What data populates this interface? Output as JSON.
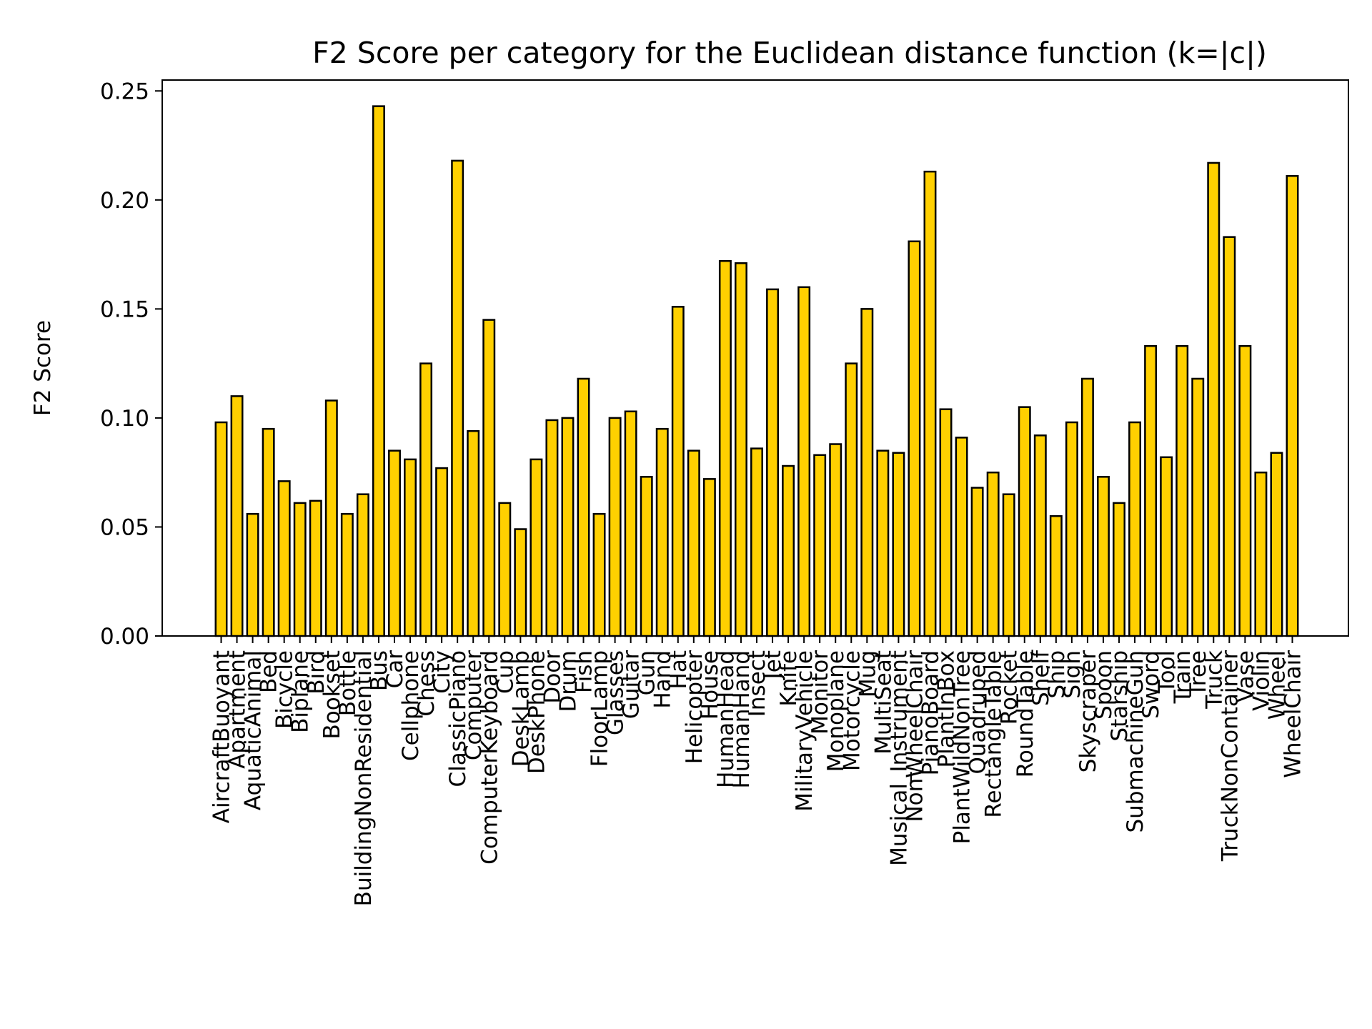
{
  "chart_data": {
    "type": "bar",
    "title": "F2 Score per category for the Euclidean distance function (k=|c|)",
    "xlabel": "",
    "ylabel": "F2 Score",
    "ylim": [
      0,
      0.255
    ],
    "yticks": [
      "0.00",
      "0.05",
      "0.10",
      "0.15",
      "0.20",
      "0.25"
    ],
    "grid": false,
    "legend": "none",
    "colors": {
      "bar_fill": "#FFD000",
      "bar_edge": "#000000",
      "axis": "#000000"
    },
    "categories": [
      "AircraftBuoyant",
      "Apartment",
      "AquaticAnimal",
      "Bed",
      "Bicycle",
      "Biplane",
      "Bird",
      "Bookset",
      "Bottle",
      "BuildingNonResidential",
      "Bus",
      "Car",
      "Cellphone",
      "Chess",
      "City",
      "ClassicPiano",
      "Computer",
      "ComputerKeyboard",
      "Cup",
      "DeskLamp",
      "DeskPhone",
      "Door",
      "Drum",
      "Fish",
      "FloorLamp",
      "Glasses",
      "Guitar",
      "Gun",
      "Hand",
      "Hat",
      "Helicopter",
      "House",
      "HumanHead",
      "HumanHand",
      "Insect",
      "Jet",
      "Knife",
      "MilitaryVehicle",
      "Monitor",
      "Monoplane",
      "Motorcycle",
      "Mug",
      "MultiSeat",
      "Musical_Instrument",
      "NonWheelChair",
      "PianoBoard",
      "PlantInBox",
      "PlantWildNonTree",
      "Quadruped",
      "RectangleTable",
      "Rocket",
      "RoundTable",
      "Shelf",
      "Ship",
      "Sign",
      "Skyscraper",
      "Spoon",
      "Starship",
      "SubmachineGun",
      "Sword",
      "Tool",
      "Train",
      "Tree",
      "Truck",
      "TruckNonContainer",
      "Vase",
      "Violin",
      "Wheel",
      "WheelChair"
    ],
    "values": [
      0.098,
      0.11,
      0.056,
      0.095,
      0.071,
      0.061,
      0.062,
      0.108,
      0.056,
      0.065,
      0.243,
      0.085,
      0.081,
      0.125,
      0.077,
      0.218,
      0.094,
      0.145,
      0.061,
      0.049,
      0.081,
      0.099,
      0.1,
      0.118,
      0.056,
      0.1,
      0.103,
      0.073,
      0.095,
      0.151,
      0.085,
      0.072,
      0.172,
      0.171,
      0.086,
      0.159,
      0.078,
      0.16,
      0.083,
      0.088,
      0.125,
      0.15,
      0.085,
      0.084,
      0.181,
      0.213,
      0.104,
      0.091,
      0.068,
      0.075,
      0.065,
      0.105,
      0.092,
      0.055,
      0.098,
      0.118,
      0.073,
      0.061,
      0.098,
      0.133,
      0.082,
      0.133,
      0.118,
      0.217,
      0.183,
      0.133,
      0.075,
      0.084,
      0.211
    ]
  }
}
